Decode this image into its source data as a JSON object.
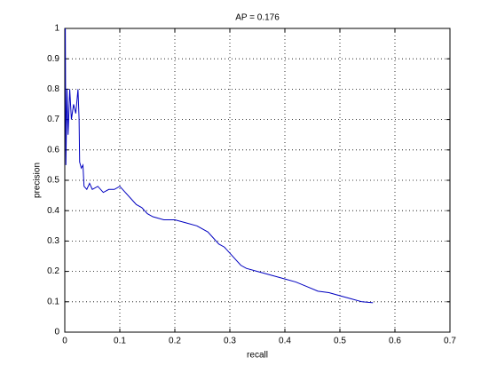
{
  "chart_data": {
    "type": "line",
    "title": "AP = 0.176",
    "x_label": "recall",
    "y_label": "precision",
    "x": [
      0.001,
      0.002,
      0.004,
      0.006,
      0.009,
      0.012,
      0.016,
      0.02,
      0.024,
      0.026,
      0.027,
      0.03,
      0.033,
      0.035,
      0.04,
      0.045,
      0.05,
      0.06,
      0.07,
      0.08,
      0.09,
      0.1,
      0.11,
      0.12,
      0.13,
      0.14,
      0.15,
      0.16,
      0.18,
      0.2,
      0.22,
      0.24,
      0.26,
      0.27,
      0.28,
      0.29,
      0.3,
      0.31,
      0.32,
      0.33,
      0.35,
      0.37,
      0.4,
      0.42,
      0.44,
      0.46,
      0.48,
      0.5,
      0.52,
      0.54,
      0.56
    ],
    "values": [
      1.0,
      0.55,
      0.8,
      0.65,
      0.8,
      0.7,
      0.75,
      0.72,
      0.8,
      0.7,
      0.56,
      0.54,
      0.55,
      0.48,
      0.47,
      0.49,
      0.47,
      0.48,
      0.46,
      0.47,
      0.47,
      0.48,
      0.46,
      0.44,
      0.42,
      0.41,
      0.39,
      0.38,
      0.37,
      0.37,
      0.36,
      0.35,
      0.33,
      0.31,
      0.29,
      0.28,
      0.26,
      0.24,
      0.22,
      0.21,
      0.2,
      0.19,
      0.175,
      0.165,
      0.15,
      0.135,
      0.13,
      0.12,
      0.11,
      0.1,
      0.097
    ],
    "color": "#0000c0",
    "xlim": [
      0,
      0.7
    ],
    "xticks": [
      0,
      0.1,
      0.2,
      0.3,
      0.4,
      0.5,
      0.6,
      0.7
    ],
    "ylim": [
      0,
      1
    ],
    "yticks": [
      0,
      0.1,
      0.2,
      0.3,
      0.4,
      0.5,
      0.6,
      0.7,
      0.8,
      0.9,
      1
    ],
    "grid": true
  }
}
